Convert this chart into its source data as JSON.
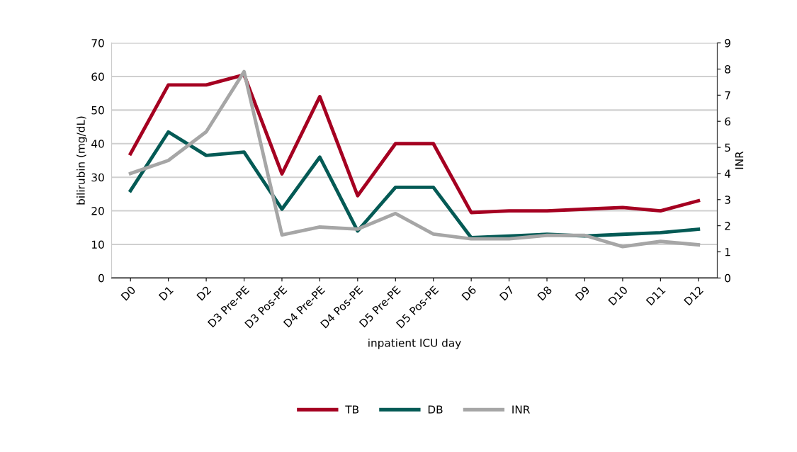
{
  "chart_data": {
    "type": "line",
    "xlabel": "inpatient ICU day",
    "ylabel": "bilirubin (mg/dL)",
    "y2label": "INR",
    "categories": [
      "D0",
      "D1",
      "D2",
      "D3 Pre-PE",
      "D3 Pos-PE",
      "D4 Pre-PE",
      "D4 Pos-PE",
      "D5 Pre-PE",
      "D5 Pos-PE",
      "D6",
      "D7",
      "D8",
      "D9",
      "D10",
      "D11",
      "D12"
    ],
    "series": [
      {
        "name": "TB",
        "color": "#a50021",
        "values": [
          37,
          57.5,
          57.5,
          60.5,
          31,
          54,
          24.5,
          40,
          40,
          19.5,
          20,
          20,
          20.5,
          21,
          20,
          23
        ]
      },
      {
        "name": "DB",
        "color": "#045a55",
        "values": [
          26,
          43.5,
          36.5,
          37.5,
          20.5,
          36,
          14,
          27,
          27,
          12,
          12.5,
          13,
          12.5,
          13,
          13.5,
          14.5
        ]
      },
      {
        "name": "INR",
        "color": "#a6a6a6",
        "axis": "y2",
        "values": [
          4.0,
          4.5,
          5.6,
          7.9,
          1.65,
          1.95,
          1.87,
          2.47,
          1.68,
          1.5,
          1.5,
          1.63,
          1.63,
          1.2,
          1.4,
          1.27
        ]
      }
    ],
    "ylim": [
      0,
      70
    ],
    "yticks": [
      0,
      10,
      20,
      30,
      40,
      50,
      60,
      70
    ],
    "y2lim": [
      0,
      9
    ],
    "y2ticks": [
      0,
      1,
      2,
      3,
      4,
      5,
      6,
      7,
      8,
      9
    ],
    "grid": "y",
    "legend": "bottom",
    "line_style": "solid",
    "marker": "none"
  }
}
